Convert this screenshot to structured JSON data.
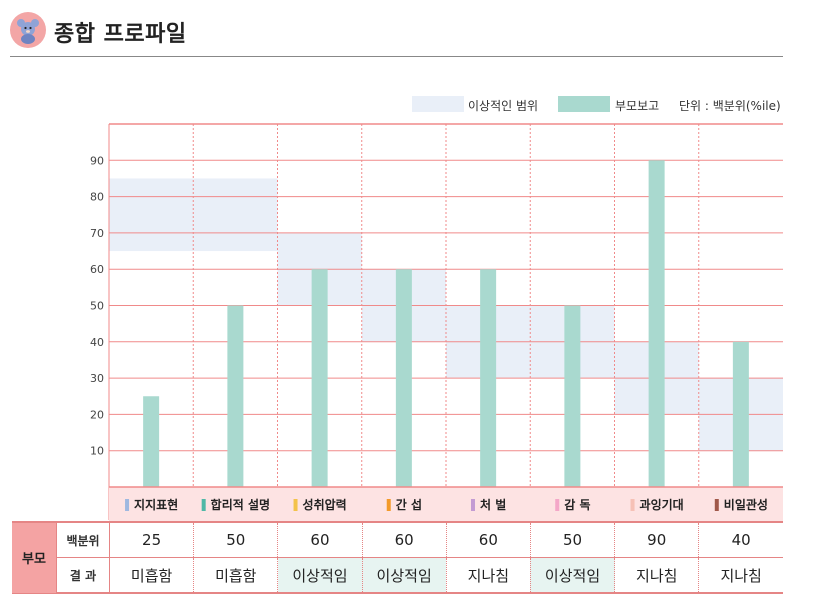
{
  "header": {
    "title": "종합 프로파일",
    "icon": "bear-icon"
  },
  "legend": {
    "ideal_label": "이상적인 범위",
    "parent_label": "부모보고",
    "unit_label": "단위 : 백분위(%ile)"
  },
  "colors": {
    "ideal_range": "#e9eff8",
    "bar": "#a9d9cf",
    "grid": "#f08a8a",
    "category_band": "#fde3e3"
  },
  "chart_data": {
    "type": "bar",
    "categories": [
      "지지표현",
      "합리적 설명",
      "성취압력",
      "간 섭",
      "처 벌",
      "감 독",
      "과잉기대",
      "비일관성"
    ],
    "category_marker_colors": [
      "#9fb8e0",
      "#4fb8a6",
      "#f3c24a",
      "#f39a2a",
      "#c39bd3",
      "#f4a7c8",
      "#f6c1b6",
      "#a0584a"
    ],
    "series": [
      {
        "name": "부모보고",
        "values": [
          25,
          50,
          60,
          60,
          60,
          50,
          90,
          40
        ]
      }
    ],
    "ideal_ranges": [
      [
        65,
        85
      ],
      [
        65,
        85
      ],
      [
        50,
        70
      ],
      [
        40,
        60
      ],
      [
        30,
        50
      ],
      [
        30,
        50
      ],
      [
        20,
        40
      ],
      [
        10,
        30
      ]
    ],
    "yticks": [
      10,
      20,
      30,
      40,
      50,
      60,
      70,
      80,
      90
    ],
    "ylim": [
      0,
      100
    ],
    "grid": true,
    "legend_position": "top-right"
  },
  "table": {
    "group_label": "부모",
    "row_labels": [
      "백분위",
      "결 과"
    ],
    "percentiles": [
      "25",
      "50",
      "60",
      "60",
      "60",
      "50",
      "90",
      "40"
    ],
    "results": [
      "미흡함",
      "미흡함",
      "이상적임",
      "이상적임",
      "지나침",
      "이상적임",
      "지나침",
      "지나침"
    ],
    "highlighted": [
      false,
      false,
      true,
      true,
      false,
      true,
      false,
      false
    ]
  }
}
